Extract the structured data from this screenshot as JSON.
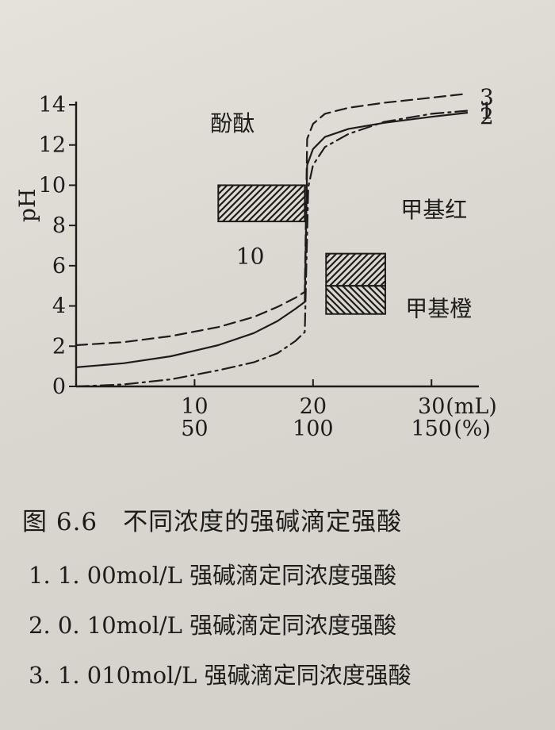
{
  "chart_data": {
    "type": "line",
    "ylabel": "pH",
    "xlabel": "",
    "x_unit_label": "(mL)",
    "secondary_x_unit_label": "(%)",
    "xlim": [
      0,
      34
    ],
    "ylim": [
      0,
      14
    ],
    "y_ticks": [
      0,
      2,
      4,
      6,
      8,
      10,
      12,
      14
    ],
    "x_ticks": [
      10,
      20,
      30
    ],
    "x_tick_labels": [
      "10",
      "20",
      "30"
    ],
    "secondary_x_tick_labels": [
      "50",
      "100",
      "150"
    ],
    "grid": false,
    "series": [
      {
        "name": "1",
        "line_style": "dash-dot",
        "points": [
          [
            0,
            0.0
          ],
          [
            4,
            0.1
          ],
          [
            8,
            0.35
          ],
          [
            12,
            0.8
          ],
          [
            15,
            1.2
          ],
          [
            17,
            1.65
          ],
          [
            18.5,
            2.25
          ],
          [
            19.3,
            2.7
          ],
          [
            19.6,
            9.9
          ],
          [
            20,
            11.0
          ],
          [
            21,
            11.9
          ],
          [
            23,
            12.55
          ],
          [
            26,
            13.15
          ],
          [
            30,
            13.55
          ],
          [
            33,
            13.7
          ]
        ]
      },
      {
        "name": "2",
        "line_style": "solid",
        "points": [
          [
            0,
            0.95
          ],
          [
            4,
            1.15
          ],
          [
            8,
            1.5
          ],
          [
            12,
            2.05
          ],
          [
            15,
            2.65
          ],
          [
            17,
            3.25
          ],
          [
            18.5,
            3.85
          ],
          [
            19.3,
            4.2
          ],
          [
            19.5,
            11.0
          ],
          [
            20,
            11.8
          ],
          [
            21,
            12.4
          ],
          [
            23,
            12.8
          ],
          [
            26,
            13.1
          ],
          [
            30,
            13.4
          ],
          [
            33,
            13.6
          ]
        ]
      },
      {
        "name": "3",
        "line_style": "dashed",
        "points": [
          [
            0,
            2.05
          ],
          [
            4,
            2.2
          ],
          [
            8,
            2.5
          ],
          [
            12,
            2.95
          ],
          [
            15,
            3.45
          ],
          [
            17,
            3.95
          ],
          [
            18.5,
            4.4
          ],
          [
            19.3,
            4.7
          ],
          [
            19.5,
            12.3
          ],
          [
            20,
            13.05
          ],
          [
            21,
            13.55
          ],
          [
            23,
            13.85
          ],
          [
            26,
            14.1
          ],
          [
            30,
            14.35
          ],
          [
            33,
            14.55
          ]
        ]
      }
    ],
    "indicators": [
      {
        "name": "酚酞",
        "ph_range": [
          8.2,
          10.0
        ],
        "x_range": [
          12,
          19.3
        ],
        "hatch": "forward"
      },
      {
        "name": "甲基红",
        "ph_range": [
          5.0,
          6.6
        ],
        "x_range": [
          21.1,
          26.1
        ],
        "hatch": "forward"
      },
      {
        "name": "甲基橙",
        "ph_range": [
          3.6,
          5.0
        ],
        "x_range": [
          21.1,
          26.1
        ],
        "hatch": "backward"
      }
    ],
    "annotations": [
      {
        "text": "酚酞",
        "x": 13.2,
        "y": 12.7
      },
      {
        "text": "甲基红",
        "x": 30.2,
        "y": 8.4
      },
      {
        "text": "甲基橙",
        "x": 30.6,
        "y": 3.5
      },
      {
        "text": "10",
        "x": 14.7,
        "y": 6.1
      }
    ]
  },
  "caption": {
    "figure": "图 6.6　不同浓度的强碱滴定强酸",
    "notes": [
      "1. 1. 00mol/L 强碱滴定同浓度强酸",
      "2. 0. 10mol/L 强碱滴定同浓度强酸",
      "3. 1. 010mol/L 强碱滴定同浓度强酸"
    ]
  }
}
